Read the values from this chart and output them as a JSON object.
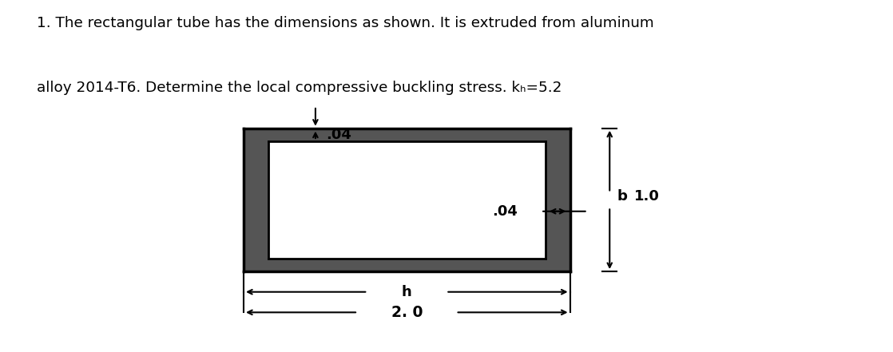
{
  "title_line1": "1. The rectangular tube has the dimensions as shown. It is extruded from aluminum",
  "title_line2": "alloy 2014-T6. Determine the local compressive buckling stress. kₕ=5.2",
  "bg_color": "#ffffff",
  "text_color": "#000000",
  "label_t04_top": ".04",
  "label_t04_side": ".04",
  "label_b": "b",
  "label_b_val": "1.0",
  "label_h": "h",
  "label_h_val": "2. 0"
}
